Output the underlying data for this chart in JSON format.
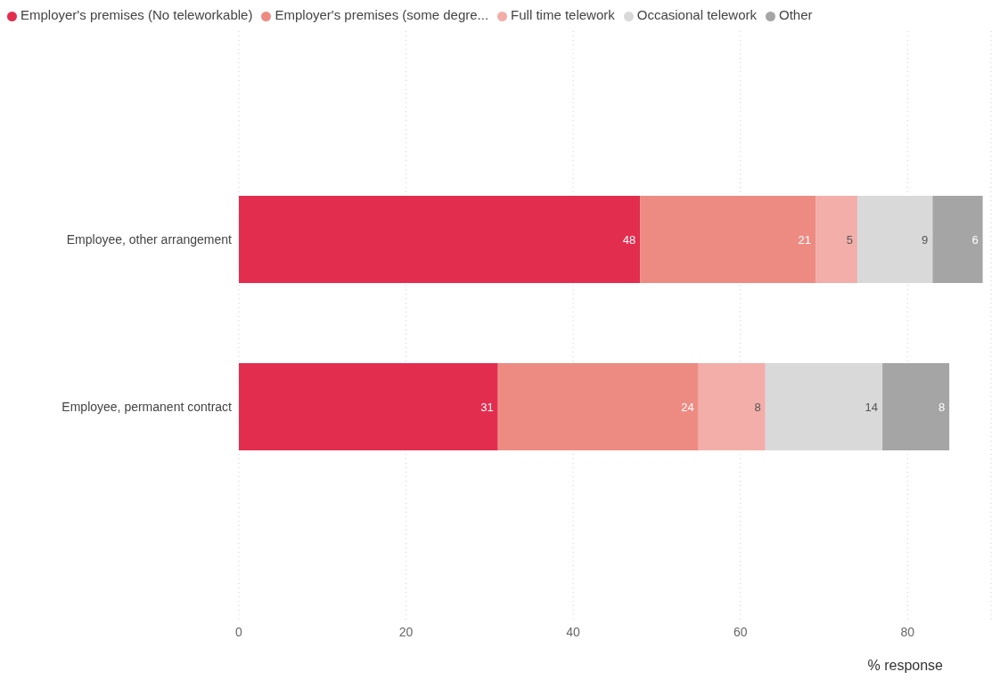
{
  "chart_data": {
    "type": "bar",
    "orientation": "horizontal",
    "stacked": true,
    "categories": [
      "Employee, other arrangement",
      "Employee, permanent contract"
    ],
    "series": [
      {
        "name": "Employer's premises (No teleworkable)",
        "color": "#e32d4f",
        "values": [
          48,
          31
        ]
      },
      {
        "name": "Employer's premises (some degre...",
        "color": "#ed8b83",
        "values": [
          21,
          24
        ]
      },
      {
        "name": "Full time telework",
        "color": "#f3aeaa",
        "values": [
          5,
          8
        ]
      },
      {
        "name": "Occasional telework",
        "color": "#d9d9d9",
        "values": [
          9,
          14
        ]
      },
      {
        "name": "Other",
        "color": "#a5a5a5",
        "values": [
          6,
          8
        ]
      }
    ],
    "xlim": [
      0,
      90
    ],
    "xticks": [
      0,
      20,
      40,
      60,
      80
    ],
    "xlabel": "% response",
    "grid": "x",
    "legend": "top left",
    "data_labels": true
  }
}
